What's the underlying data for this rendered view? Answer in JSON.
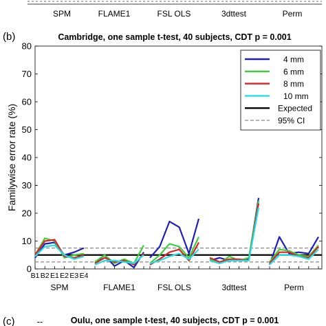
{
  "top_fragment": {
    "method_labels": [
      "SPM",
      "FLAME1",
      "FSL OLS",
      "3dttest",
      "Perm"
    ]
  },
  "panel_b": {
    "letter": "(b)",
    "title": "Cambridge, one sample t-test, 40 subjects, CDT p = 0.001",
    "ylabel": "Familywise error rate (%)",
    "method_labels": [
      "SPM",
      "FLAME1",
      "FSL OLS",
      "3dttest",
      "Perm"
    ],
    "design_tick_labels": [
      "B1",
      "B2",
      "E1",
      "E2",
      "E3",
      "E4"
    ],
    "legend": [
      {
        "label": "4 mm",
        "color": "#1f1fbf",
        "style": "solid"
      },
      {
        "label": "6 mm",
        "color": "#3ad03a",
        "style": "solid"
      },
      {
        "label": "8 mm",
        "color": "#e02020",
        "style": "solid"
      },
      {
        "label": "10 mm",
        "color": "#22e0e8",
        "style": "solid"
      },
      {
        "label": "Expected",
        "color": "#000000",
        "style": "solid"
      },
      {
        "label": "95% CI",
        "color": "#888888",
        "style": "dashed"
      }
    ]
  },
  "panel_c": {
    "letter": "(c)",
    "title": "Oulu, one sample t-test, 40 subjects, CDT p = 0.001"
  },
  "chart_data": {
    "type": "line",
    "ylim": [
      0,
      80
    ],
    "yticks": [
      0,
      10,
      20,
      30,
      40,
      50,
      60,
      70,
      80
    ],
    "groups": [
      "SPM",
      "FLAME1",
      "FSL OLS",
      "3dttest",
      "Perm"
    ],
    "designs": [
      "B1",
      "B2",
      "E1",
      "E2",
      "E3",
      "E4"
    ],
    "expected": 5,
    "ci": [
      2.5,
      7.5
    ],
    "series": [
      {
        "name": "4 mm",
        "color": "#1f1fbf",
        "values": [
          [
            4,
            9,
            9.5,
            5,
            6,
            7.5
          ],
          [
            2,
            5,
            1,
            3,
            0.5,
            6
          ],
          [
            4,
            8,
            17,
            15,
            5.5,
            18
          ],
          [
            3,
            4,
            3,
            3,
            3.5,
            25.5
          ],
          [
            1.5,
            11.5,
            5.5,
            6,
            5.5,
            11.5
          ]
        ]
      },
      {
        "name": "6 mm",
        "color": "#3ad03a",
        "values": [
          [
            5,
            11,
            10,
            4,
            5,
            5.5
          ],
          [
            2.5,
            5,
            2,
            3.5,
            2,
            8.5
          ],
          [
            2,
            5,
            9,
            8,
            4,
            11.5
          ],
          [
            3.5,
            2,
            4.5,
            3,
            4,
            24.5
          ],
          [
            2.5,
            7,
            6.5,
            5,
            4.5,
            8.5
          ]
        ]
      },
      {
        "name": "8 mm",
        "color": "#e02020",
        "values": [
          [
            5,
            10,
            10.5,
            4.5,
            4,
            5
          ],
          [
            2,
            4,
            2.5,
            3,
            1.5,
            5.5
          ],
          [
            1.5,
            3.5,
            6,
            7,
            3,
            9.5
          ],
          [
            4,
            2.5,
            3.5,
            3.5,
            3,
            23.5
          ],
          [
            2,
            6,
            6,
            4.5,
            4,
            8
          ]
        ]
      },
      {
        "name": "10 mm",
        "color": "#22e0e8",
        "values": [
          [
            4.5,
            8,
            8.5,
            5,
            3.5,
            4.5
          ],
          [
            1.5,
            3,
            3,
            2.5,
            2,
            5
          ],
          [
            2,
            3,
            4.5,
            5.5,
            3.5,
            7
          ],
          [
            3,
            2,
            3,
            3,
            3,
            22
          ],
          [
            1.5,
            5,
            5,
            4.5,
            3.5,
            7
          ]
        ]
      }
    ]
  }
}
